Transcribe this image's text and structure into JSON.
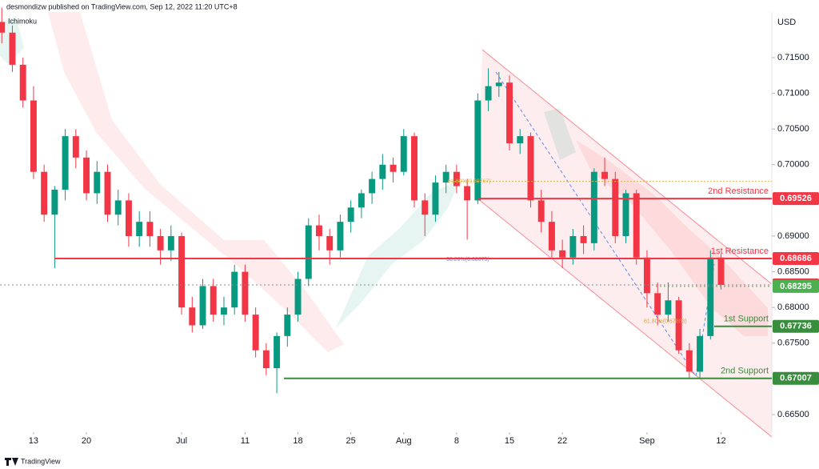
{
  "chart_data": {
    "type": "candlestick",
    "publisher_note": "desmondizw published on TradingView.com, Sep 12, 2022 11:20 UTC+8",
    "indicator_label": "Ichimoku",
    "currency": "USD",
    "brand": "TradingView",
    "up_color": "#089981",
    "down_color": "#f23645",
    "xlim": [
      -3.17,
      69.8
    ],
    "ylim": [
      0.66253,
      0.72139
    ],
    "xticks": [
      {
        "value": 0,
        "label": "13"
      },
      {
        "value": 5,
        "label": "20"
      },
      {
        "value": 14,
        "label": "Jul"
      },
      {
        "value": 20,
        "label": "11"
      },
      {
        "value": 25,
        "label": "18"
      },
      {
        "value": 30,
        "label": "25"
      },
      {
        "value": 35,
        "label": "Aug"
      },
      {
        "value": 40,
        "label": "8"
      },
      {
        "value": 45,
        "label": "15"
      },
      {
        "value": 50,
        "label": "22"
      },
      {
        "value": 58,
        "label": "Sep"
      },
      {
        "value": 65,
        "label": "12"
      }
    ],
    "yticks": [
      {
        "value": 0.665,
        "label": "0.66500"
      },
      {
        "value": 0.675,
        "label": "0.67500"
      },
      {
        "value": 0.68,
        "label": "0.68000"
      },
      {
        "value": 0.685,
        "label": "0.68500"
      },
      {
        "value": 0.69,
        "label": "0.69000"
      },
      {
        "value": 0.7,
        "label": "0.70000"
      },
      {
        "value": 0.705,
        "label": "0.70500"
      },
      {
        "value": 0.71,
        "label": "0.71000"
      },
      {
        "value": 0.715,
        "label": "0.71500"
      }
    ],
    "x": [
      -3,
      -2,
      -1,
      0,
      1,
      2,
      3,
      4,
      5,
      6,
      7,
      8,
      9,
      10,
      11,
      12,
      13,
      14,
      15,
      16,
      17,
      18,
      19,
      20,
      21,
      22,
      23,
      24,
      25,
      26,
      27,
      28,
      29,
      30,
      31,
      32,
      33,
      34,
      35,
      36,
      37,
      38,
      39,
      40,
      41,
      42,
      43,
      44,
      45,
      46,
      47,
      48,
      49,
      50,
      51,
      52,
      53,
      54,
      55,
      56,
      57,
      58,
      59,
      60,
      61,
      62,
      63,
      64,
      65
    ],
    "open": [
      0.72,
      0.7185,
      0.714,
      0.709,
      0.699,
      0.693,
      0.6965,
      0.704,
      0.701,
      0.696,
      0.699,
      0.693,
      0.695,
      0.69,
      0.692,
      0.69,
      0.688,
      0.69,
      0.68,
      0.6775,
      0.683,
      0.679,
      0.68,
      0.685,
      0.679,
      0.674,
      0.6715,
      0.676,
      0.679,
      0.684,
      0.6915,
      0.69,
      0.688,
      0.692,
      0.694,
      0.696,
      0.698,
      0.7,
      0.699,
      0.704,
      0.695,
      0.693,
      0.6975,
      0.699,
      0.697,
      0.695,
      0.709,
      0.711,
      0.7115,
      0.703,
      0.704,
      0.695,
      0.692,
      0.688,
      0.687,
      0.69,
      0.689,
      0.699,
      0.698,
      0.69,
      0.696,
      0.687,
      0.682,
      0.679,
      0.681,
      0.674,
      0.671,
      0.676,
      0.687
    ],
    "high": [
      0.722,
      0.7195,
      0.715,
      0.711,
      0.7,
      0.697,
      0.705,
      0.705,
      0.702,
      0.7005,
      0.7,
      0.6965,
      0.696,
      0.6935,
      0.6935,
      0.691,
      0.6915,
      0.6905,
      0.6815,
      0.684,
      0.684,
      0.6815,
      0.686,
      0.686,
      0.68,
      0.675,
      0.6765,
      0.68,
      0.685,
      0.6925,
      0.693,
      0.691,
      0.693,
      0.695,
      0.6965,
      0.699,
      0.7015,
      0.701,
      0.705,
      0.7045,
      0.696,
      0.6985,
      0.7,
      0.7,
      0.698,
      0.71,
      0.7135,
      0.713,
      0.7125,
      0.705,
      0.7045,
      0.6965,
      0.6935,
      0.6895,
      0.691,
      0.6915,
      0.6995,
      0.701,
      0.699,
      0.6965,
      0.6965,
      0.688,
      0.6835,
      0.6835,
      0.6815,
      0.675,
      0.677,
      0.688,
      0.6875
    ],
    "low": [
      0.717,
      0.713,
      0.708,
      0.698,
      0.692,
      0.6855,
      0.695,
      0.6995,
      0.695,
      0.6945,
      0.692,
      0.6915,
      0.6885,
      0.6885,
      0.6885,
      0.686,
      0.6865,
      0.679,
      0.6765,
      0.677,
      0.678,
      0.6775,
      0.679,
      0.678,
      0.673,
      0.6705,
      0.668,
      0.6745,
      0.678,
      0.683,
      0.688,
      0.686,
      0.687,
      0.6905,
      0.6925,
      0.6945,
      0.6965,
      0.6975,
      0.6985,
      0.694,
      0.69,
      0.692,
      0.696,
      0.696,
      0.6895,
      0.6945,
      0.7075,
      0.7095,
      0.702,
      0.7015,
      0.694,
      0.6905,
      0.687,
      0.6855,
      0.686,
      0.6875,
      0.688,
      0.697,
      0.689,
      0.689,
      0.686,
      0.68,
      0.6775,
      0.678,
      0.6735,
      0.67,
      0.67,
      0.6755,
      0.6825
    ],
    "close": [
      0.7185,
      0.714,
      0.709,
      0.699,
      0.693,
      0.6965,
      0.704,
      0.701,
      0.696,
      0.699,
      0.693,
      0.695,
      0.69,
      0.692,
      0.69,
      0.688,
      0.69,
      0.68,
      0.6775,
      0.683,
      0.679,
      0.68,
      0.685,
      0.679,
      0.674,
      0.6715,
      0.676,
      0.679,
      0.684,
      0.6915,
      0.69,
      0.688,
      0.692,
      0.694,
      0.696,
      0.698,
      0.7,
      0.699,
      0.704,
      0.695,
      0.693,
      0.6975,
      0.699,
      0.697,
      0.695,
      0.709,
      0.711,
      0.7115,
      0.703,
      0.704,
      0.695,
      0.692,
      0.688,
      0.687,
      0.69,
      0.689,
      0.699,
      0.698,
      0.69,
      0.696,
      0.687,
      0.682,
      0.679,
      0.681,
      0.674,
      0.671,
      0.676,
      0.687,
      0.68316
    ],
    "levels": [
      {
        "name": "2nd Resistance",
        "value": 0.69526,
        "color": "#f23645",
        "style": "solid"
      },
      {
        "name": "1st Resistance",
        "value": 0.68686,
        "color": "#f23645",
        "style": "solid"
      },
      {
        "value": 0.68316,
        "color": "#f23645",
        "style": "dotted"
      },
      {
        "value": 0.68295,
        "color": "#4caf50",
        "style": "dotted"
      },
      {
        "name": "1st Support",
        "value": 0.67736,
        "color": "#388e3c",
        "style": "solid"
      },
      {
        "name": "2nd Support",
        "value": 0.67007,
        "color": "#388e3c",
        "style": "solid"
      }
    ],
    "annotations": [
      {
        "text": "61.80%(0.69767)",
        "value": 0.69767,
        "color": "#e0b54a"
      },
      {
        "text": "38.20%(0.68675)",
        "value": 0.68675,
        "color": "#9575cd"
      },
      {
        "text": "61.80%(0.67803)",
        "value": 0.67803,
        "color": "#e0a030"
      }
    ]
  }
}
